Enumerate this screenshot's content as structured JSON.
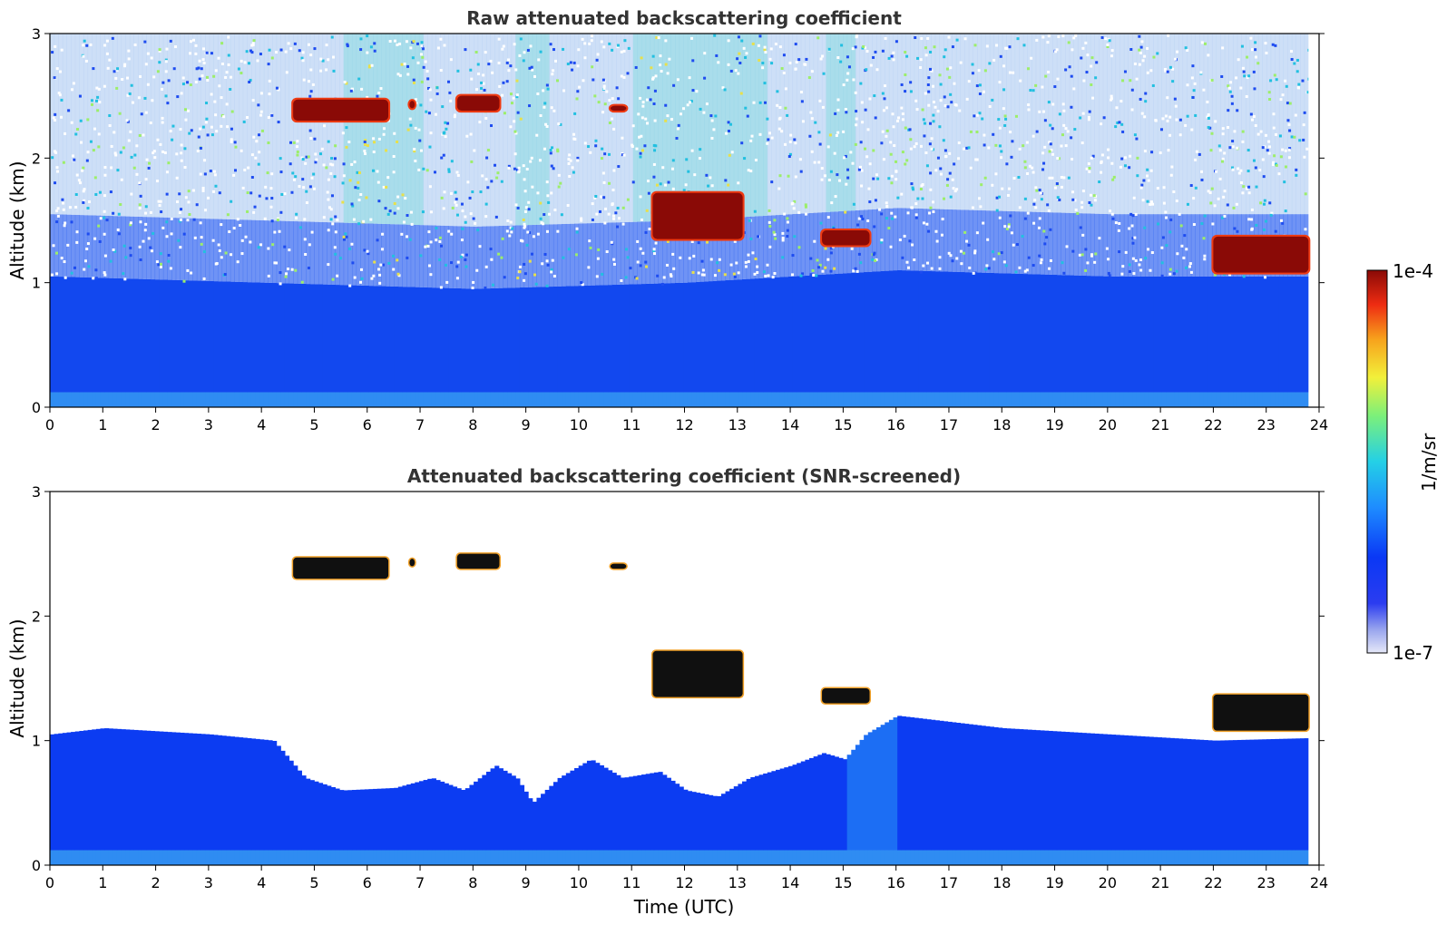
{
  "chart_data": [
    {
      "type": "heatmap",
      "title": "Raw attenuated backscattering coefficient",
      "ylabel": "Altitude (km)",
      "xlabel": "",
      "xlim": [
        0,
        24
      ],
      "ylim": [
        0,
        3
      ],
      "xticks": [
        "0",
        "1",
        "2",
        "3",
        "4",
        "5",
        "6",
        "7",
        "8",
        "9",
        "10",
        "11",
        "12",
        "13",
        "14",
        "15",
        "16",
        "17",
        "18",
        "19",
        "20",
        "21",
        "22",
        "23",
        "24"
      ],
      "yticks": [
        "0",
        "1",
        "2",
        "3"
      ],
      "data_end_time": 23.8,
      "boundary_layer_top_km": [
        [
          0,
          1.05
        ],
        [
          4,
          1.0
        ],
        [
          8,
          0.95
        ],
        [
          12,
          1.0
        ],
        [
          16,
          1.1
        ],
        [
          20,
          1.05
        ],
        [
          23.8,
          1.05
        ]
      ],
      "noise_fog_columns": [
        [
          5.5,
          7.0
        ],
        [
          8.8,
          9.4
        ],
        [
          11.0,
          13.5
        ],
        [
          14.6,
          15.2
        ]
      ],
      "cloud_layers": [
        {
          "t": [
            4.6,
            6.4
          ],
          "alt": [
            2.3,
            2.47
          ]
        },
        {
          "t": [
            6.8,
            6.9
          ],
          "alt": [
            2.4,
            2.46
          ]
        },
        {
          "t": [
            7.7,
            8.5
          ],
          "alt": [
            2.38,
            2.5
          ]
        },
        {
          "t": [
            10.6,
            10.9
          ],
          "alt": [
            2.38,
            2.42
          ]
        },
        {
          "t": [
            11.4,
            13.1
          ],
          "alt": [
            1.35,
            1.72
          ]
        },
        {
          "t": [
            14.6,
            15.5
          ],
          "alt": [
            1.3,
            1.42
          ]
        },
        {
          "t": [
            22.0,
            23.8
          ],
          "alt": [
            1.08,
            1.37
          ]
        }
      ]
    },
    {
      "type": "heatmap",
      "title": "Attenuated backscattering coefficient (SNR-screened)",
      "ylabel": "Altitude (km)",
      "xlabel": "Time (UTC)",
      "xlim": [
        0,
        24
      ],
      "ylim": [
        0,
        3
      ],
      "xticks": [
        "0",
        "1",
        "2",
        "3",
        "4",
        "5",
        "6",
        "7",
        "8",
        "9",
        "10",
        "11",
        "12",
        "13",
        "14",
        "15",
        "16",
        "17",
        "18",
        "19",
        "20",
        "21",
        "22",
        "23",
        "24"
      ],
      "yticks": [
        "0",
        "1",
        "2",
        "3"
      ],
      "data_end_time": 23.8,
      "screened_top_km": [
        [
          0,
          1.05
        ],
        [
          1,
          1.1
        ],
        [
          3,
          1.05
        ],
        [
          4.2,
          1.0
        ],
        [
          4.8,
          0.7
        ],
        [
          5.5,
          0.6
        ],
        [
          6.5,
          0.62
        ],
        [
          7.2,
          0.7
        ],
        [
          7.8,
          0.6
        ],
        [
          8.4,
          0.8
        ],
        [
          8.8,
          0.7
        ],
        [
          9.1,
          0.5
        ],
        [
          9.6,
          0.7
        ],
        [
          10.2,
          0.85
        ],
        [
          10.8,
          0.7
        ],
        [
          11.5,
          0.75
        ],
        [
          12.0,
          0.6
        ],
        [
          12.6,
          0.55
        ],
        [
          13.2,
          0.7
        ],
        [
          14.0,
          0.8
        ],
        [
          14.6,
          0.9
        ],
        [
          15.0,
          0.85
        ],
        [
          15.4,
          1.05
        ],
        [
          16,
          1.2
        ],
        [
          18,
          1.1
        ],
        [
          20,
          1.05
        ],
        [
          22,
          1.0
        ],
        [
          23.8,
          1.02
        ]
      ],
      "cloud_layers": [
        {
          "t": [
            4.6,
            6.4
          ],
          "alt": [
            2.3,
            2.47
          ]
        },
        {
          "t": [
            6.8,
            6.9
          ],
          "alt": [
            2.4,
            2.46
          ]
        },
        {
          "t": [
            7.7,
            8.5
          ],
          "alt": [
            2.38,
            2.5
          ]
        },
        {
          "t": [
            10.6,
            10.9
          ],
          "alt": [
            2.38,
            2.42
          ]
        },
        {
          "t": [
            11.4,
            13.1
          ],
          "alt": [
            1.35,
            1.72
          ]
        },
        {
          "t": [
            14.6,
            15.5
          ],
          "alt": [
            1.3,
            1.42
          ]
        },
        {
          "t": [
            22.0,
            23.8
          ],
          "alt": [
            1.08,
            1.37
          ]
        }
      ]
    }
  ],
  "colorbar": {
    "label": "1/m/sr",
    "max_label": "1e-4",
    "min_label": "1e-7",
    "scale": "log",
    "colors": [
      "#e6e8f8",
      "#9aa6ee",
      "#2b3cf0",
      "#0a38f5",
      "#1e8cff",
      "#24d0e6",
      "#7cf07a",
      "#f2f03a",
      "#f7a21c",
      "#ee2c12",
      "#8a0a06"
    ]
  }
}
